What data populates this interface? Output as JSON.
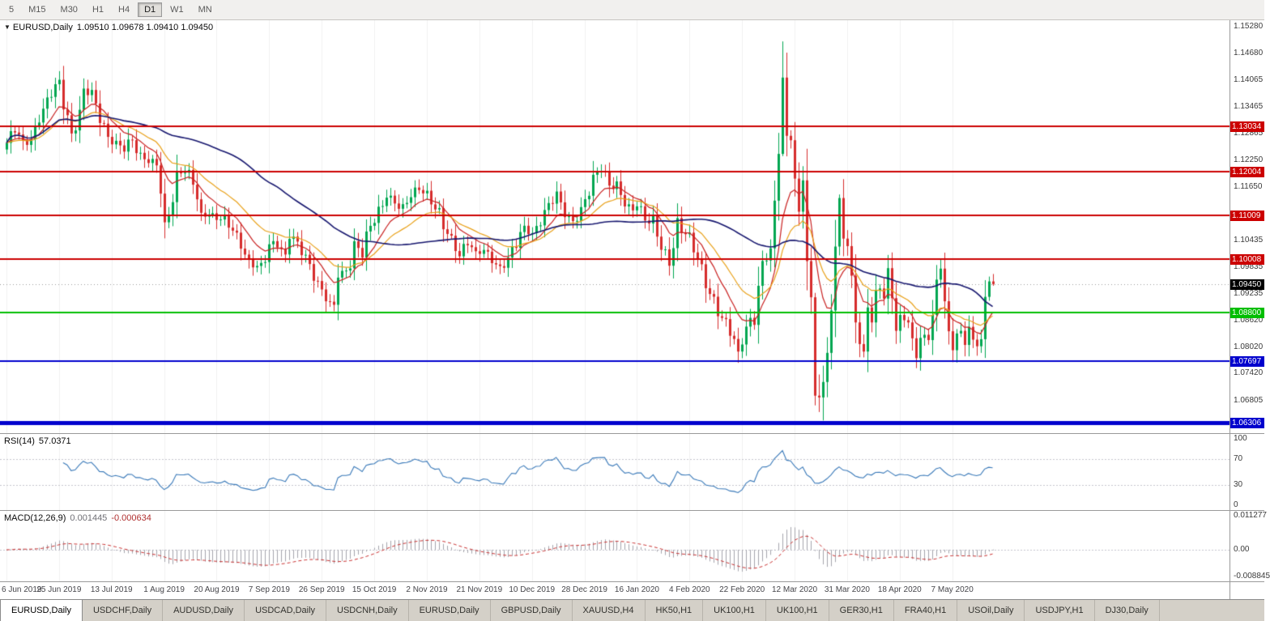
{
  "toolbar": {
    "timeframes": [
      "5",
      "M15",
      "M30",
      "H1",
      "H4",
      "D1",
      "W1",
      "MN"
    ],
    "active_timeframe": "D1"
  },
  "main_panel": {
    "title": "EURUSD,Daily",
    "ohlc_text": "1.09510 1.09678 1.09410 1.09450"
  },
  "rsi_panel": {
    "label": "RSI(14)",
    "value": "57.0371",
    "axis_ticks": [
      {
        "label": "100",
        "value": 100
      },
      {
        "label": "70",
        "value": 70
      },
      {
        "label": "30",
        "value": 30
      },
      {
        "label": "0",
        "value": 0
      }
    ]
  },
  "macd_panel": {
    "label": "MACD(12,26,9)",
    "main_value": "0.001445",
    "signal_value": "-0.000634",
    "axis_ticks": [
      {
        "label": "0.011277",
        "anchor": "max"
      },
      {
        "label": "0.00",
        "anchor": "zero"
      },
      {
        "label": "-0.008845",
        "anchor": "min"
      }
    ]
  },
  "price_axis": {
    "ticks": [
      "1.15280",
      "1.14680",
      "1.14065",
      "1.13465",
      "1.12865",
      "1.12250",
      "1.11650",
      "1.10435",
      "1.09835",
      "1.09235",
      "1.08620",
      "1.08020",
      "1.07420",
      "1.06805"
    ],
    "current": {
      "label": "1.09450",
      "price": 1.0945,
      "bg": "#000000"
    }
  },
  "levels": [
    {
      "label": "1.13034",
      "price": 1.13034,
      "color": "#CC0000",
      "line_width": 2
    },
    {
      "label": "1.12004",
      "price": 1.12004,
      "color": "#CC0000",
      "line_width": 2
    },
    {
      "label": "1.11009",
      "price": 1.11009,
      "color": "#CC0000",
      "line_width": 2
    },
    {
      "label": "1.10008",
      "price": 1.10008,
      "color": "#CC0000",
      "line_width": 2
    },
    {
      "label": "1.08800",
      "price": 1.088,
      "color": "#00BE00",
      "line_width": 2
    },
    {
      "label": "1.07697",
      "price": 1.07697,
      "color": "#0000CD",
      "line_width": 2
    },
    {
      "label": "1.06306",
      "price": 1.06306,
      "color": "#0000CD",
      "line_width": 5
    }
  ],
  "date_axis": [
    "6 Jun 2019",
    "25 Jun 2019",
    "13 Jul 2019",
    "1 Aug 2019",
    "20 Aug 2019",
    "7 Sep 2019",
    "26 Sep 2019",
    "15 Oct 2019",
    "2 Nov 2019",
    "21 Nov 2019",
    "10 Dec 2019",
    "28 Dec 2019",
    "16 Jan 2020",
    "4 Feb 2020",
    "22 Feb 2020",
    "12 Mar 2020",
    "31 Mar 2020",
    "18 Apr 2020",
    "7 May 2020"
  ],
  "tabs": [
    "EURUSD,Daily",
    "USDCHF,Daily",
    "AUDUSD,Daily",
    "USDCAD,Daily",
    "USDCNH,Daily",
    "EURUSD,Daily",
    "GBPUSD,Daily",
    "XAUUSD,H4",
    "HK50,H1",
    "UK100,H1",
    "UK100,H1",
    "GER30,H1",
    "FRA40,H1",
    "USOil,Daily",
    "USDJPY,H1",
    "DJ30,Daily"
  ],
  "active_tab_index": 0,
  "chart_data": {
    "type": "candlestick",
    "symbol": "EURUSD",
    "timeframe": "Daily",
    "last_ohlc": {
      "open": "1.09510",
      "high": "1.09678",
      "low": "1.09410",
      "close": "1.09450"
    },
    "count": 245,
    "bars_per_gridline": 13,
    "price_range": {
      "max": 1.1543,
      "min": 1.0607
    },
    "up_color": "#00A650",
    "down_color": "#D62C2C",
    "close_keyframes": [
      [
        0,
        1.1265
      ],
      [
        2,
        1.1292
      ],
      [
        4,
        1.1262
      ],
      [
        6,
        1.1278
      ],
      [
        8,
        1.1325
      ],
      [
        10,
        1.1352
      ],
      [
        12,
        1.1398
      ],
      [
        13,
        1.1408
      ],
      [
        14,
        1.137
      ],
      [
        16,
        1.1288
      ],
      [
        18,
        1.134
      ],
      [
        19,
        1.1382
      ],
      [
        21,
        1.137
      ],
      [
        23,
        1.133
      ],
      [
        25,
        1.1282
      ],
      [
        27,
        1.1262
      ],
      [
        29,
        1.1248
      ],
      [
        31,
        1.1272
      ],
      [
        33,
        1.124
      ],
      [
        35,
        1.1226
      ],
      [
        37,
        1.1214
      ],
      [
        38,
        1.115
      ],
      [
        39,
        1.1085
      ],
      [
        40,
        1.111
      ],
      [
        42,
        1.1198
      ],
      [
        44,
        1.1205
      ],
      [
        46,
        1.117
      ],
      [
        48,
        1.1098
      ],
      [
        50,
        1.1108
      ],
      [
        52,
        1.1098
      ],
      [
        54,
        1.1088
      ],
      [
        56,
        1.1062
      ],
      [
        58,
        1.104
      ],
      [
        60,
        1.0998
      ],
      [
        62,
        1.0986
      ],
      [
        63,
        1.0972
      ],
      [
        65,
        1.103
      ],
      [
        67,
        1.1042
      ],
      [
        69,
        1.1012
      ],
      [
        70,
        1.1063
      ],
      [
        72,
        1.103
      ],
      [
        74,
        1.1
      ],
      [
        76,
        1.0968
      ],
      [
        78,
        1.0935
      ],
      [
        80,
        1.0905
      ],
      [
        81,
        1.0898
      ],
      [
        82,
        1.0962
      ],
      [
        84,
        1.0972
      ],
      [
        86,
        1.104
      ],
      [
        88,
        1.1022
      ],
      [
        90,
        1.1072
      ],
      [
        92,
        1.11
      ],
      [
        94,
        1.115
      ],
      [
        96,
        1.1135
      ],
      [
        98,
        1.1112
      ],
      [
        100,
        1.1142
      ],
      [
        102,
        1.1162
      ],
      [
        104,
        1.1152
      ],
      [
        106,
        1.1122
      ],
      [
        108,
        1.107
      ],
      [
        110,
        1.1042
      ],
      [
        112,
        1.1016
      ],
      [
        114,
        1.1048
      ],
      [
        116,
        1.1012
      ],
      [
        118,
        1.1018
      ],
      [
        120,
        1.1002
      ],
      [
        122,
        1.0984
      ],
      [
        124,
        1.1002
      ],
      [
        126,
        1.1032
      ],
      [
        128,
        1.1072
      ],
      [
        130,
        1.1062
      ],
      [
        132,
        1.1092
      ],
      [
        134,
        1.112
      ],
      [
        136,
        1.1142
      ],
      [
        138,
        1.1108
      ],
      [
        140,
        1.109
      ],
      [
        142,
        1.1106
      ],
      [
        144,
        1.115
      ],
      [
        146,
        1.1198
      ],
      [
        147,
        1.122
      ],
      [
        149,
        1.1172
      ],
      [
        151,
        1.1162
      ],
      [
        153,
        1.1122
      ],
      [
        155,
        1.1112
      ],
      [
        156,
        1.1136
      ],
      [
        158,
        1.1096
      ],
      [
        160,
        1.108
      ],
      [
        162,
        1.1022
      ],
      [
        164,
        1.1002
      ],
      [
        166,
        1.109
      ],
      [
        168,
        1.1058
      ],
      [
        169,
        1.1042
      ],
      [
        171,
        1.0996
      ],
      [
        173,
        1.0948
      ],
      [
        175,
        1.0912
      ],
      [
        177,
        1.0868
      ],
      [
        179,
        1.0832
      ],
      [
        181,
        1.0792
      ],
      [
        182,
        1.0808
      ],
      [
        183,
        1.0852
      ],
      [
        185,
        1.0882
      ],
      [
        187,
        1.0982
      ],
      [
        189,
        1.1026
      ],
      [
        190,
        1.1134
      ],
      [
        191,
        1.124
      ],
      [
        192,
        1.1413
      ],
      [
        193,
        1.1281
      ],
      [
        194,
        1.1271
      ],
      [
        195,
        1.1184
      ],
      [
        196,
        1.1109
      ],
      [
        197,
        1.118
      ],
      [
        198,
        1.0997
      ],
      [
        199,
        1.0915
      ],
      [
        200,
        1.0692
      ],
      [
        201,
        1.0688
      ],
      [
        202,
        1.0723
      ],
      [
        203,
        1.0789
      ],
      [
        204,
        1.0885
      ],
      [
        205,
        1.103
      ],
      [
        206,
        1.114
      ],
      [
        207,
        1.1048
      ],
      [
        208,
        1.1031
      ],
      [
        209,
        1.0964
      ],
      [
        210,
        1.0858
      ],
      [
        211,
        1.0809
      ],
      [
        212,
        1.0792
      ],
      [
        213,
        1.0892
      ],
      [
        214,
        1.0858
      ],
      [
        215,
        1.093
      ],
      [
        216,
        1.0935
      ],
      [
        217,
        1.0912
      ],
      [
        218,
        1.0981
      ],
      [
        219,
        1.0913
      ],
      [
        220,
        1.0839
      ],
      [
        221,
        1.0875
      ],
      [
        222,
        1.0863
      ],
      [
        223,
        1.0858
      ],
      [
        224,
        1.0822
      ],
      [
        225,
        1.0777
      ],
      [
        226,
        1.0823
      ],
      [
        227,
        1.083
      ],
      [
        228,
        1.0818
      ],
      [
        229,
        1.0875
      ],
      [
        230,
        1.0955
      ],
      [
        231,
        1.098
      ],
      [
        232,
        1.0906
      ],
      [
        233,
        1.0838
      ],
      [
        234,
        1.0795
      ],
      [
        235,
        1.0833
      ],
      [
        236,
        1.0839
      ],
      [
        237,
        1.0807
      ],
      [
        238,
        1.0848
      ],
      [
        239,
        1.0819
      ],
      [
        240,
        1.0804
      ],
      [
        241,
        1.082
      ],
      [
        242,
        1.0916
      ],
      [
        243,
        1.0951
      ],
      [
        244,
        1.0945
      ]
    ],
    "ohlc_overrides": {
      "192": [
        1.124,
        1.1495,
        1.1235,
        1.1413
      ],
      "200": [
        1.0915,
        1.0925,
        1.067,
        1.0692
      ],
      "201": [
        1.0692,
        1.074,
        1.0655,
        1.0688
      ],
      "202": [
        1.0688,
        1.076,
        1.0636,
        1.0723
      ],
      "206": [
        1.103,
        1.1148,
        1.101,
        1.114
      ],
      "235": [
        1.0795,
        1.0843,
        1.0767,
        1.0833
      ],
      "243": [
        1.0916,
        1.0962,
        1.0907,
        1.0951
      ],
      "244": [
        1.0951,
        1.09678,
        1.0941,
        1.0945
      ]
    },
    "moving_averages": [
      {
        "type": "ema",
        "period": 10,
        "color": "#C82020",
        "width": 1.2
      },
      {
        "type": "ema",
        "period": 21,
        "color": "#E8A018",
        "width": 1.2
      },
      {
        "type": "sma",
        "period": 50,
        "color": "#16166E",
        "width": 1.6
      }
    ],
    "rsi": {
      "period": 14,
      "color": "#3878B8",
      "guide_levels": [
        70,
        30
      ]
    },
    "macd": {
      "fast": 12,
      "slow": 26,
      "signal": 9,
      "hist_color": "#A4A4AC",
      "signal_color": "#C83030"
    }
  }
}
